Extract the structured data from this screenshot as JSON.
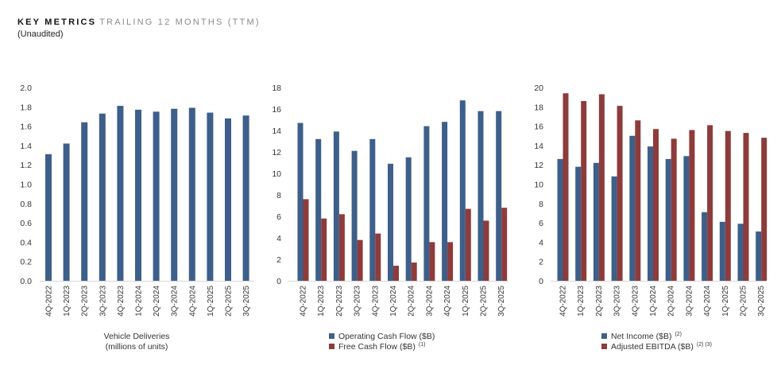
{
  "header": {
    "title_bold": "KEY METRICS",
    "title_light": "TRAILING 12 MONTHS (TTM)",
    "subtitle": "(Unaudited)"
  },
  "colors": {
    "blue": "#3d5f8a",
    "red": "#8e3b3b",
    "axis": "#d9d9d9"
  },
  "chart_data": [
    {
      "type": "bar",
      "categories": [
        "4Q-2022",
        "1Q-2023",
        "2Q-2023",
        "3Q-2023",
        "4Q-2023",
        "1Q-2024",
        "2Q-2024",
        "3Q-2024",
        "4Q-2024",
        "1Q-2025",
        "2Q-2025",
        "3Q-2025"
      ],
      "series": [
        {
          "name": "",
          "color": "#3d5f8a",
          "values": [
            1.31,
            1.42,
            1.64,
            1.73,
            1.81,
            1.77,
            1.75,
            1.78,
            1.79,
            1.74,
            1.68,
            1.71
          ]
        }
      ],
      "ylim": [
        0,
        2.0
      ],
      "yticks": [
        "0.0",
        "0.2",
        "0.4",
        "0.6",
        "0.8",
        "1.0",
        "1.2",
        "1.4",
        "1.6",
        "1.8",
        "2.0"
      ],
      "caption": [
        "Vehicle Deliveries",
        "(millions of units)"
      ],
      "legend": "bottom"
    },
    {
      "type": "bar",
      "categories": [
        "4Q-2022",
        "1Q-2023",
        "2Q-2023",
        "3Q-2023",
        "4Q-2023",
        "1Q-2024",
        "2Q-2024",
        "3Q-2024",
        "4Q-2024",
        "1Q-2025",
        "2Q-2025",
        "3Q-2025"
      ],
      "series": [
        {
          "name": "Operating Cash Flow ($B)",
          "sup": "",
          "color": "#3d5f8a",
          "values": [
            14.7,
            13.2,
            13.9,
            12.1,
            13.2,
            10.9,
            11.5,
            14.4,
            14.8,
            16.8,
            15.8,
            15.8
          ]
        },
        {
          "name": "Free Cash Flow ($B)",
          "sup": "(1)",
          "color": "#8e3b3b",
          "values": [
            7.6,
            5.8,
            6.2,
            3.8,
            4.4,
            1.4,
            1.7,
            3.6,
            3.6,
            6.7,
            5.6,
            6.8
          ]
        }
      ],
      "ylim": [
        0,
        18
      ],
      "yticks": [
        "0",
        "2",
        "4",
        "6",
        "8",
        "10",
        "12",
        "14",
        "16",
        "18"
      ],
      "legend": "bottom"
    },
    {
      "type": "bar",
      "categories": [
        "4Q-2022",
        "1Q-2023",
        "2Q-2023",
        "3Q-2023",
        "4Q-2023",
        "1Q-2024",
        "2Q-2024",
        "3Q-2024",
        "4Q-2024",
        "1Q-2025",
        "2Q-2025",
        "3Q-2025"
      ],
      "series": [
        {
          "name": "Net Income ($B)",
          "sup": "(2)",
          "color": "#3d5f8a",
          "values": [
            12.6,
            11.8,
            12.2,
            10.8,
            15.0,
            13.9,
            12.6,
            12.9,
            7.1,
            6.1,
            5.9,
            5.1
          ]
        },
        {
          "name": "Adjusted EBITDA ($B)",
          "sup": "(2) (3)",
          "color": "#8e3b3b",
          "values": [
            19.4,
            18.6,
            19.3,
            18.1,
            16.6,
            15.7,
            14.7,
            15.6,
            16.1,
            15.5,
            15.3,
            14.8
          ]
        }
      ],
      "ylim": [
        0,
        20
      ],
      "yticks": [
        "0",
        "2",
        "4",
        "6",
        "8",
        "10",
        "12",
        "14",
        "16",
        "18",
        "20"
      ],
      "legend": "bottom"
    }
  ]
}
